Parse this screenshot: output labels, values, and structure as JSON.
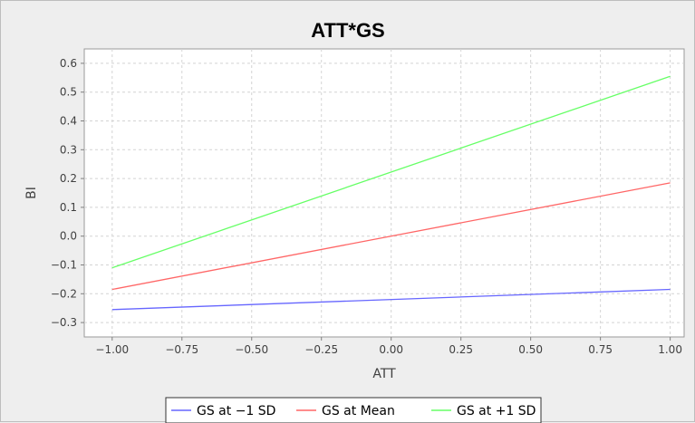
{
  "chart_data": {
    "type": "line",
    "title": "ATT*GS",
    "xlabel": "ATT",
    "ylabel": "BI",
    "xlim": [
      -1.1,
      1.05
    ],
    "ylim": [
      -0.35,
      0.65
    ],
    "x_ticks": [
      "-1.00",
      "-0.75",
      "-0.50",
      "-0.25",
      "0.00",
      "0.25",
      "0.50",
      "0.75",
      "1.00"
    ],
    "y_ticks": [
      "0.6",
      "0.5",
      "0.4",
      "0.3",
      "0.2",
      "0.1",
      "0.0",
      "-0.1",
      "-0.2",
      "-0.3"
    ],
    "grid": true,
    "legend_position": "bottom",
    "series": [
      {
        "name": "GS at −1 SD",
        "color": "#6666ff",
        "x": [
          -1.0,
          1.0
        ],
        "y": [
          -0.255,
          -0.185
        ]
      },
      {
        "name": "GS at Mean",
        "color": "#ff6666",
        "x": [
          -1.0,
          1.0
        ],
        "y": [
          -0.185,
          0.185
        ]
      },
      {
        "name": "GS at +1 SD",
        "color": "#66ff66",
        "x": [
          -1.0,
          1.0
        ],
        "y": [
          -0.11,
          0.555
        ]
      }
    ]
  }
}
